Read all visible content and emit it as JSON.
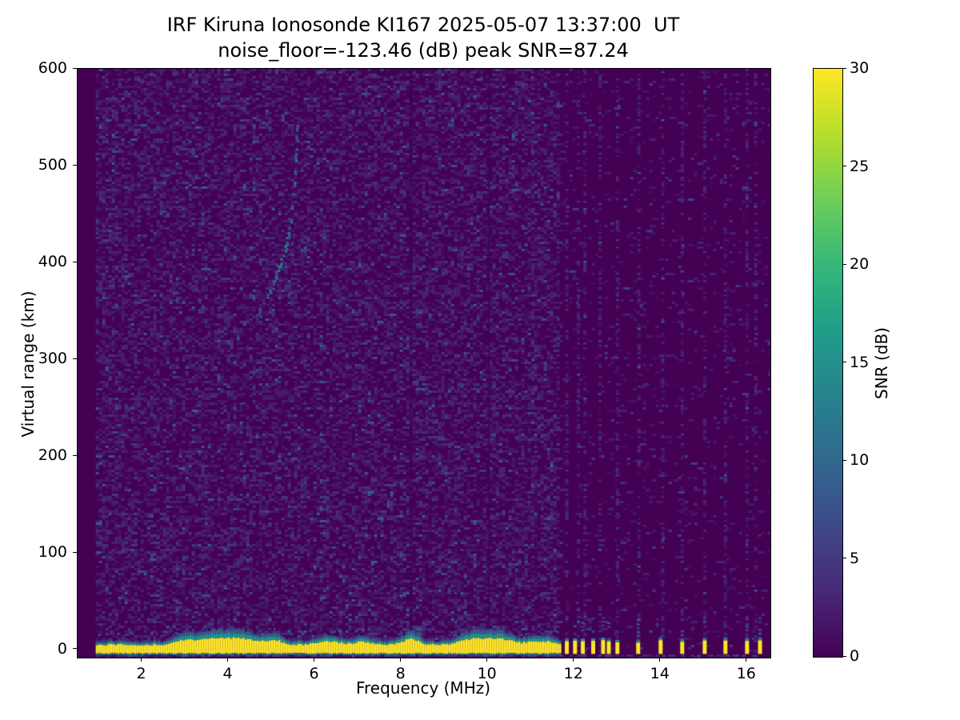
{
  "chart_data": {
    "type": "heatmap",
    "title": "IRF Kiruna Ionosonde KI167 2025-05-07 13:37:00  UT",
    "subtitle": "noise_floor=-123.46 (dB) peak SNR=87.24",
    "noise_floor_db": -123.46,
    "peak_snr_db": 87.24,
    "xlabel": "Frequency (MHz)",
    "ylabel": "Virtual range (km)",
    "xlim": [
      0.51,
      16.54
    ],
    "ylim": [
      -8.3,
      600.2
    ],
    "xticks": [
      2,
      4,
      6,
      8,
      10,
      12,
      14,
      16
    ],
    "yticks": [
      0,
      100,
      200,
      300,
      400,
      500,
      600
    ],
    "grid": false,
    "legend": "none",
    "colorbar": {
      "label": "SNR (dB)",
      "min": 0,
      "max": 30,
      "ticks": [
        0,
        5,
        10,
        15,
        20,
        25,
        30
      ],
      "colormap": "viridis"
    },
    "colormap_stops": [
      "#440154",
      "#482878",
      "#3e4989",
      "#31688e",
      "#26828e",
      "#1f9e89",
      "#35b779",
      "#6ece58",
      "#b5de2b",
      "#fde725"
    ],
    "features": {
      "data_freq_start_mhz": 0.93,
      "noise_speckle": {
        "dense_region_end_mhz": 11.65,
        "dense_fill_prob": 0.465,
        "sparse_fill_prob": 0.062,
        "typical_snr_db": [
          1,
          5
        ]
      },
      "ground_echo_band": {
        "core_top_km": 4,
        "core_bottom_km": -3.5,
        "snr_db": 30,
        "freq_start_mhz": 0.93,
        "freq_continuous_end_mhz": 11.65,
        "bumps": [
          {
            "f": 3.0,
            "amp_km": 6,
            "sigma": 0.25
          },
          {
            "f": 3.7,
            "amp_km": 9,
            "sigma": 0.3
          },
          {
            "f": 4.3,
            "amp_km": 8,
            "sigma": 0.25
          },
          {
            "f": 5.0,
            "amp_km": 7,
            "sigma": 0.2
          },
          {
            "f": 6.3,
            "amp_km": 5,
            "sigma": 0.25
          },
          {
            "f": 7.1,
            "amp_km": 4,
            "sigma": 0.2
          },
          {
            "f": 8.2,
            "amp_km": 8,
            "sigma": 0.18
          },
          {
            "f": 9.7,
            "amp_km": 9,
            "sigma": 0.3
          },
          {
            "f": 10.3,
            "amp_km": 7,
            "sigma": 0.25
          },
          {
            "f": 11.2,
            "amp_km": 5,
            "sigma": 0.3
          }
        ],
        "pulse_freqs_mhz": [
          11.83,
          12.02,
          12.2,
          12.44,
          12.67,
          12.8,
          13.0,
          13.48,
          14.0,
          14.5,
          15.02,
          15.5,
          16.0,
          16.3
        ],
        "subband_speckle_km": -5.5
      },
      "f_layer_trace": {
        "snr_db_range": [
          6,
          15
        ],
        "points": [
          [
            4.66,
            346,
            0.25
          ],
          [
            4.74,
            352,
            0.3
          ],
          [
            4.82,
            358,
            0.35
          ],
          [
            4.9,
            364,
            0.4
          ],
          [
            4.97,
            371,
            0.45
          ],
          [
            5.04,
            378,
            0.55
          ],
          [
            5.1,
            386,
            0.6
          ],
          [
            5.16,
            394,
            0.7
          ],
          [
            5.22,
            401,
            0.9
          ],
          [
            5.28,
            407,
            1.0
          ],
          [
            5.33,
            414,
            1.0
          ],
          [
            5.37,
            423,
            0.9
          ],
          [
            5.41,
            433,
            0.8
          ],
          [
            5.45,
            444,
            0.75
          ],
          [
            5.48,
            456,
            0.7
          ],
          [
            5.51,
            468,
            0.75
          ],
          [
            5.53,
            480,
            0.7
          ],
          [
            5.55,
            492,
            0.65
          ],
          [
            5.57,
            505,
            0.7
          ],
          [
            5.58,
            517,
            0.65
          ],
          [
            5.59,
            528,
            0.6
          ],
          [
            5.6,
            539,
            0.55
          ]
        ]
      },
      "rfi_lines_mhz": [
        11.05,
        11.83,
        12.1,
        12.25,
        12.6,
        13.0,
        13.5,
        14.05,
        14.5,
        15.02,
        15.5,
        16.0,
        16.2
      ],
      "dark_notches_mhz": [
        8.22,
        10.02
      ]
    }
  }
}
